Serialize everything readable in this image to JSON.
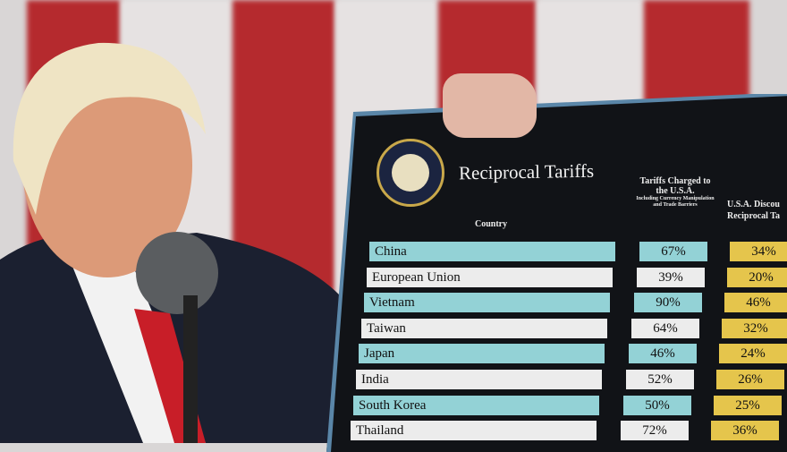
{
  "board": {
    "title": "Reciprocal Tariffs",
    "seal_text": "Seal of the President of the United States",
    "headers": {
      "country": "Country",
      "charged": "Tariffs Charged to the U.S.A.",
      "charged_note": "Including Currency Manipulation and Trade Barriers",
      "discounted": "U.S.A. Discou",
      "discounted_line2": "Reciprocal Ta"
    },
    "rows": [
      {
        "country": "China",
        "charged": "67%",
        "reciprocal": "34%"
      },
      {
        "country": "European Union",
        "charged": "39%",
        "reciprocal": "20%"
      },
      {
        "country": "Vietnam",
        "charged": "90%",
        "reciprocal": "46%"
      },
      {
        "country": "Taiwan",
        "charged": "64%",
        "reciprocal": "32%"
      },
      {
        "country": "Japan",
        "charged": "46%",
        "reciprocal": "24%"
      },
      {
        "country": "India",
        "charged": "52%",
        "reciprocal": "26%"
      },
      {
        "country": "South Korea",
        "charged": "50%",
        "reciprocal": "25%"
      },
      {
        "country": "Thailand",
        "charged": "72%",
        "reciprocal": "36%"
      }
    ],
    "colors": {
      "teal": "#93d2d6",
      "light": "#ececec",
      "yellow": "#e5c54c",
      "board": "#111317"
    }
  }
}
